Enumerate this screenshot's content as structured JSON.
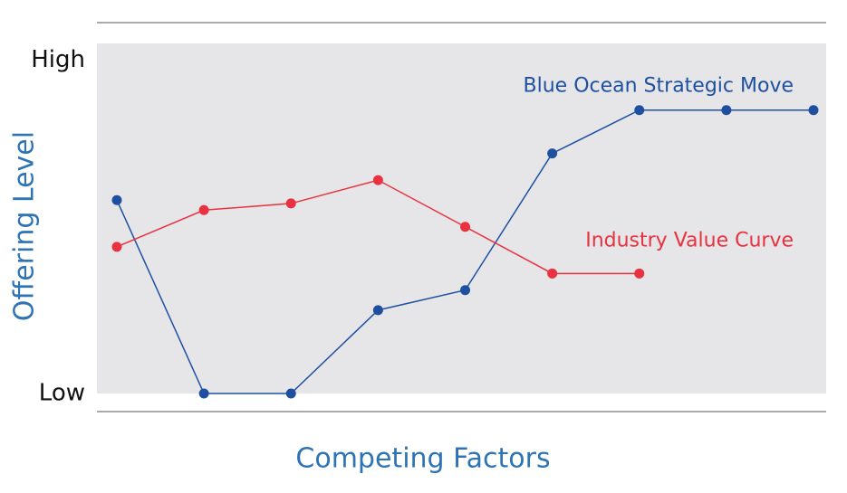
{
  "chart_data": {
    "type": "line",
    "x_label": "Competing Factors",
    "y_label": "Offering Level",
    "categories": [
      null,
      null,
      null,
      null,
      null,
      null,
      null,
      null,
      null
    ],
    "series": [
      {
        "name": "Blue Ocean Strategic Move",
        "color": "#1f50a0",
        "values": [
          5.8,
          0,
          0,
          2.5,
          3.1,
          7.2,
          8.5,
          8.5,
          8.5
        ]
      },
      {
        "name": "Industry Value Curve",
        "color": "#e8323f",
        "values": [
          4.4,
          5.5,
          5.7,
          6.4,
          5.0,
          3.6,
          3.6,
          null,
          null
        ]
      }
    ],
    "ylim": [
      0,
      10.5
    ],
    "yticks": [
      {
        "value": 0,
        "label": "Low"
      },
      {
        "value": 10,
        "label": "High"
      }
    ],
    "background": "#e6e6e8"
  }
}
